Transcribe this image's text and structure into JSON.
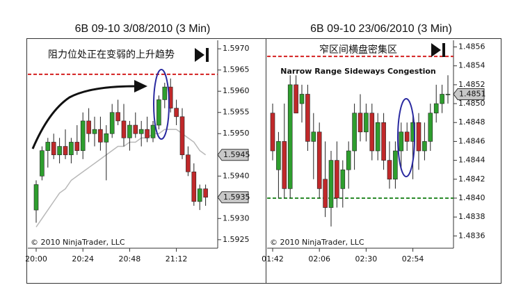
{
  "chart_data": [
    {
      "type": "candlestick",
      "title": "6B 09-10  3/08/2010 (3 Min)",
      "annotation": "阻力位处正在变弱的上升趋势",
      "copyright": "© 2010 NinjaTrader, LLC",
      "up_color": "#2e9e2e",
      "down_color": "#c0282a",
      "categories": [
        "20:00",
        null,
        null,
        null,
        null,
        null,
        null,
        null,
        "20:24",
        null,
        null,
        null,
        null,
        null,
        null,
        null,
        "20:48",
        null,
        null,
        null,
        null,
        null,
        null,
        null,
        "21:12",
        null,
        null,
        null,
        null,
        null
      ],
      "open": [
        1.5932,
        1.594,
        1.5946,
        1.5948,
        1.5945,
        1.5947,
        1.5945,
        1.5948,
        1.5946,
        1.5953,
        1.595,
        1.5951,
        1.5948,
        1.595,
        1.5955,
        1.5953,
        1.5949,
        1.5952,
        1.595,
        1.5951,
        1.5949,
        1.5952,
        1.5958,
        1.5961,
        1.5956,
        1.5954,
        1.5945,
        1.5941,
        1.5934,
        1.5937
      ],
      "high": [
        1.5939,
        1.5947,
        1.5949,
        1.595,
        1.5949,
        1.5951,
        1.5949,
        1.5952,
        1.5955,
        1.5956,
        1.5954,
        1.5954,
        1.5952,
        1.5957,
        1.5958,
        1.5957,
        1.5953,
        1.5955,
        1.5953,
        1.5954,
        1.5953,
        1.5959,
        1.5962,
        1.5963,
        1.5958,
        1.5956,
        1.5947,
        1.5943,
        1.5938,
        1.5938
      ],
      "low": [
        1.5929,
        1.5939,
        1.5942,
        1.5944,
        1.5943,
        1.5944,
        1.5943,
        1.5945,
        1.5944,
        1.5948,
        1.5947,
        1.5946,
        1.5939,
        1.5949,
        1.5952,
        1.5947,
        1.5946,
        1.5949,
        1.5947,
        1.5948,
        1.5948,
        1.5951,
        1.5956,
        1.5955,
        1.5952,
        1.5944,
        1.594,
        1.5933,
        1.5932,
        1.5933
      ],
      "close": [
        1.5938,
        1.5946,
        1.5948,
        1.5945,
        1.5947,
        1.5945,
        1.5948,
        1.5946,
        1.5953,
        1.595,
        1.5951,
        1.5948,
        1.595,
        1.5955,
        1.5953,
        1.5949,
        1.5952,
        1.595,
        1.5951,
        1.5949,
        1.5952,
        1.5958,
        1.5961,
        1.5956,
        1.5954,
        1.5945,
        1.5941,
        1.5934,
        1.5937,
        1.5935
      ],
      "moving_average": [
        1.5928,
        1.593,
        1.5932,
        1.5934,
        1.5936,
        1.5937,
        1.5939,
        1.594,
        1.5941,
        1.5942,
        1.5943,
        1.5944,
        1.5945,
        1.5946,
        1.5947,
        1.5947,
        1.5948,
        1.5948,
        1.5949,
        1.5949,
        1.595,
        1.595,
        1.5951,
        1.5951,
        1.5951,
        1.595,
        1.5949,
        1.5948,
        1.5946,
        1.5945
      ],
      "ma_color": "#b8b8b8",
      "ylim": [
        1.5923,
        1.5972
      ],
      "yticks": [
        {
          "value": 1.597,
          "label": "1.5970"
        },
        1.5965,
        {
          "value": 1.596,
          "label": "1.5960"
        },
        1.5955,
        {
          "value": 1.595,
          "label": "1.5950"
        },
        1.5945,
        {
          "value": 1.594,
          "label": "1.5940"
        },
        1.5935,
        {
          "value": 1.593,
          "label": "1.5930"
        },
        1.5925
      ],
      "reference_lines": [
        {
          "value": 1.5964,
          "color": "#d42020"
        }
      ],
      "price_markers": [
        1.5945,
        1.5935
      ]
    },
    {
      "type": "candlestick",
      "title": "6B 09-10  23/06/2010 (3 Min)",
      "annotation": "窄区间横盘密集区",
      "subtitle": "Narrow Range Sideways Congestion",
      "copyright": "© 2010 NinjaTrader, LLC",
      "up_color": "#2e9e2e",
      "down_color": "#c0282a",
      "categories": [
        "01:42",
        null,
        null,
        null,
        null,
        null,
        null,
        null,
        "02:06",
        null,
        null,
        null,
        null,
        null,
        null,
        null,
        "02:30",
        null,
        null,
        null,
        null,
        null,
        null,
        null,
        "02:54",
        null,
        null,
        null,
        null,
        null,
        null
      ],
      "open": [
        1.4849,
        1.4843,
        1.4846,
        1.4841,
        1.4852,
        1.485,
        1.4851,
        1.4846,
        1.4847,
        1.4842,
        1.4839,
        1.4844,
        1.4841,
        1.4843,
        1.4845,
        1.4849,
        1.4847,
        1.4849,
        1.4845,
        1.4848,
        1.4844,
        1.4842,
        1.4845,
        1.4847,
        1.4846,
        1.4848,
        1.4845,
        1.4846,
        1.4849,
        1.485,
        1.4851
      ],
      "high": [
        1.485,
        1.4847,
        1.485,
        1.4853,
        1.4853,
        1.4852,
        1.4852,
        1.4849,
        1.4848,
        1.4846,
        1.4845,
        1.4846,
        1.4844,
        1.4846,
        1.485,
        1.4851,
        1.485,
        1.485,
        1.4849,
        1.4849,
        1.4846,
        1.4846,
        1.4848,
        1.4848,
        1.4849,
        1.4849,
        1.4848,
        1.485,
        1.4852,
        1.4852,
        1.4853
      ],
      "low": [
        1.4844,
        1.484,
        1.484,
        1.484,
        1.4849,
        1.4848,
        1.4845,
        1.4842,
        1.484,
        1.4838,
        1.4837,
        1.4839,
        1.4839,
        1.4841,
        1.4843,
        1.4846,
        1.4846,
        1.4844,
        1.4844,
        1.4843,
        1.4841,
        1.4841,
        1.4843,
        1.4845,
        1.4842,
        1.4843,
        1.4844,
        1.4845,
        1.4848,
        1.4849,
        1.485
      ],
      "close": [
        1.4845,
        1.4846,
        1.4841,
        1.4852,
        1.4849,
        1.4851,
        1.4846,
        1.4847,
        1.4841,
        1.4839,
        1.4844,
        1.484,
        1.4843,
        1.4845,
        1.4849,
        1.4847,
        1.4849,
        1.4845,
        1.4848,
        1.4844,
        1.4842,
        1.4845,
        1.4847,
        1.4846,
        1.4848,
        1.4845,
        1.4846,
        1.4849,
        1.485,
        1.4851,
        1.4851
      ],
      "ylim": [
        1.48347,
        1.48567
      ],
      "yticks": [
        1.4856,
        1.4854,
        1.4852,
        {
          "value": 1.485,
          "label": "1.4850"
        },
        1.4848,
        1.4846,
        1.4844,
        1.4842,
        {
          "value": 1.484,
          "label": "1.4840"
        },
        1.4838,
        1.4836
      ],
      "reference_lines": [
        {
          "value": 1.4855,
          "color": "#d42020"
        },
        {
          "value": 1.484,
          "color": "#2a8a2a"
        }
      ],
      "price_markers": [
        1.4851
      ]
    }
  ]
}
